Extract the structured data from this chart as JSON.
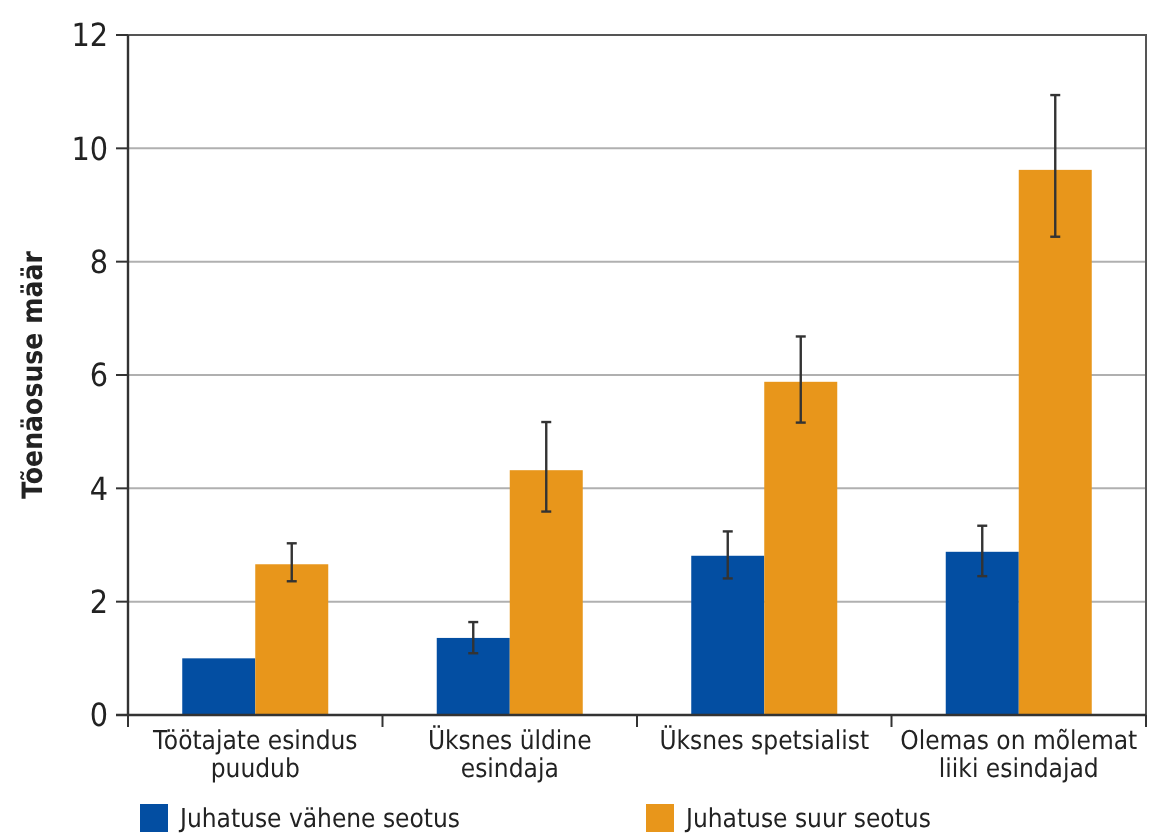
{
  "chart_data": {
    "type": "bar",
    "ylabel": "Tõenäosuse määr",
    "categories": [
      "Töötajate esindus puudub",
      "Üksnes üldine esindaja",
      "Üksnes spetsialist",
      "Olemas on mõlemat liiki esindajad"
    ],
    "series": [
      {
        "name": "Juhatuse vähene seotus",
        "color": "#034ea2",
        "values": [
          1.0,
          1.36,
          2.81,
          2.88
        ],
        "errors": [
          null,
          [
            1.09,
            1.64
          ],
          [
            2.41,
            3.24
          ],
          [
            2.45,
            3.34
          ]
        ]
      },
      {
        "name": "Juhatuse suur seotus",
        "color": "#e8961b",
        "values": [
          2.66,
          4.32,
          5.88,
          9.62
        ],
        "errors": [
          [
            2.36,
            3.03
          ],
          [
            3.59,
            5.17
          ],
          [
            5.16,
            6.68
          ],
          [
            8.44,
            10.94
          ]
        ]
      }
    ],
    "ylim": [
      0,
      12
    ],
    "yticks": [
      0,
      2,
      4,
      6,
      8,
      10,
      12
    ],
    "grid": "y",
    "legend": "bottom"
  }
}
